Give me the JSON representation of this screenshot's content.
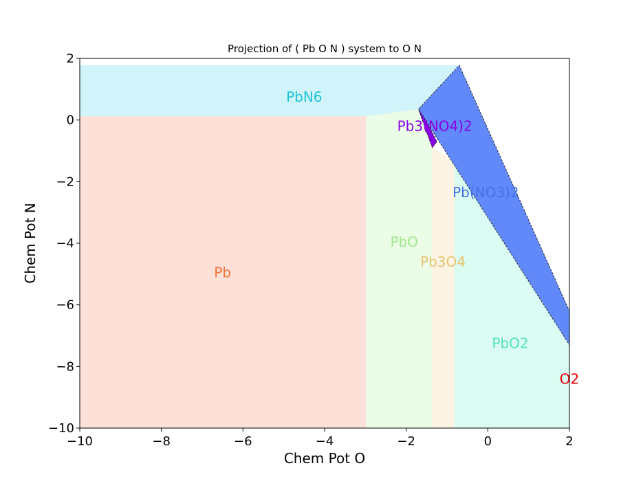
{
  "chart_data": {
    "type": "area",
    "title": "Projection of ( Pb O N ) system to O N",
    "xlabel": "Chem Pot O",
    "ylabel": "Chem Pot N",
    "xlim": [
      -10,
      2
    ],
    "ylim": [
      -10,
      2
    ],
    "grid": false,
    "xticks": [
      {
        "value": -10,
        "label": "−10"
      },
      {
        "value": -8,
        "label": "−8"
      },
      {
        "value": -6,
        "label": "−6"
      },
      {
        "value": -4,
        "label": "−4"
      },
      {
        "value": -2,
        "label": "−2"
      },
      {
        "value": 0,
        "label": "0"
      },
      {
        "value": 2,
        "label": "2"
      }
    ],
    "yticks": [
      {
        "value": -10,
        "label": "−10"
      },
      {
        "value": -8,
        "label": "−8"
      },
      {
        "value": -6,
        "label": "−6"
      },
      {
        "value": -4,
        "label": "−4"
      },
      {
        "value": -2,
        "label": "−2"
      },
      {
        "value": 0,
        "label": "0"
      },
      {
        "value": 2,
        "label": "2"
      }
    ],
    "regions": [
      {
        "id": "pb",
        "label": "Pb",
        "fill": "#fde0d8",
        "text_color": "#f4743a",
        "label_at": [
          -6.5,
          -4.95
        ],
        "polygon": [
          [
            -10,
            -10
          ],
          [
            -2.98,
            -10
          ],
          [
            -2.98,
            0.12
          ],
          [
            -10,
            0.12
          ]
        ]
      },
      {
        "id": "pbn6",
        "label": "PbN6",
        "fill": "#d0f4f9",
        "text_color": "#1ec3d9",
        "label_at": [
          -4.5,
          0.75
        ],
        "polygon": [
          [
            -10,
            0.12
          ],
          [
            -10,
            1.78
          ],
          [
            -0.7,
            1.78
          ],
          [
            -1.7,
            0.35
          ],
          [
            -2.98,
            0.12
          ]
        ]
      },
      {
        "id": "pbo",
        "label": "PbO",
        "fill": "#ebfde6",
        "text_color": "#a0e88e",
        "label_at": [
          -2.05,
          -3.95
        ],
        "polygon": [
          [
            -2.98,
            -10
          ],
          [
            -1.36,
            -10
          ],
          [
            -1.36,
            -0.9
          ],
          [
            -1.7,
            0.35
          ],
          [
            -2.98,
            0.12
          ]
        ]
      },
      {
        "id": "pb3o4",
        "label": "Pb3O4",
        "fill": "#fdf4e4",
        "text_color": "#e9c571",
        "label_at": [
          -1.1,
          -4.6
        ],
        "polygon": [
          [
            -1.36,
            -10
          ],
          [
            -0.82,
            -10
          ],
          [
            -0.82,
            -1.35
          ],
          [
            -1.36,
            -0.9
          ]
        ]
      },
      {
        "id": "pbo2",
        "label": "PbO2",
        "fill": "#dafcf2",
        "text_color": "#53e5bd",
        "label_at": [
          0.55,
          -7.25
        ],
        "polygon": [
          [
            -0.82,
            -10
          ],
          [
            2,
            -10
          ],
          [
            2,
            -7.3
          ],
          [
            -0.82,
            -1.35
          ]
        ]
      },
      {
        "id": "pb3no42",
        "label": "Pb3(NO4)2",
        "fill": "#8a00e6",
        "text_color": "#8a00e6",
        "label_at": [
          -1.3,
          -0.2
        ],
        "polygon": [
          [
            -1.7,
            0.35
          ],
          [
            -1.6,
            0.2
          ],
          [
            -1.25,
            -0.7
          ],
          [
            -1.36,
            -0.9
          ]
        ]
      },
      {
        "id": "pbno32",
        "label": "Pb(NO3)2",
        "fill": "#6189fa",
        "text_color": "#4670e6",
        "label_at": [
          -0.05,
          -2.35
        ],
        "polygon": [
          [
            -0.7,
            1.78
          ],
          [
            2,
            -6.2
          ],
          [
            2,
            -7.3
          ],
          [
            -1.7,
            0.35
          ]
        ]
      },
      {
        "id": "o2",
        "label": "O2",
        "fill": "none",
        "text_color": "#e60000",
        "label_at": [
          2.0,
          -8.4
        ],
        "polygon": []
      }
    ]
  }
}
